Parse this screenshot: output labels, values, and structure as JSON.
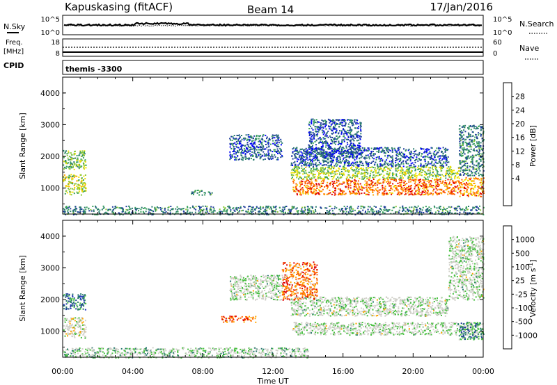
{
  "header": {
    "station": "Kapuskasing (fitACF)",
    "beam": "Beam 14",
    "date": "17/Jan/2016"
  },
  "noise_panel": {
    "left_label": "N.Sky",
    "right_label": "N.Search",
    "left_ticks": [
      "10^5",
      "10^0"
    ],
    "right_ticks": [
      "10^5",
      "10^0"
    ]
  },
  "freq_panel": {
    "left_label_1": "Freq.",
    "left_label_2": "[MHz]",
    "right_label": "Nave",
    "left_ticks": [
      "18",
      "8"
    ],
    "right_ticks": [
      "60",
      "0"
    ]
  },
  "cpid": {
    "label": "CPID",
    "value": "themis -3300"
  },
  "chart_data": [
    {
      "type": "heatmap",
      "title": "",
      "xlabel": "",
      "ylabel": "Slant Range [km]",
      "xlim": [
        0,
        24
      ],
      "ylim": [
        180,
        4500
      ],
      "y_ticks": [
        "1000",
        "2000",
        "3000",
        "4000"
      ],
      "colorbar": {
        "label": "Power [dB]",
        "ticks": [
          "28",
          "24",
          "20",
          "16",
          "12",
          "8",
          "4"
        ],
        "colors": [
          "#0000ff",
          "#1e3c9c",
          "#2a7a6e",
          "#37a05a",
          "#8bc83a",
          "#f0e000",
          "#ffa500",
          "#ff6000",
          "#e00000"
        ]
      },
      "regions": [
        {
          "t0": 0.0,
          "t1": 1.3,
          "r0": 800,
          "r1": 1450,
          "level": 0.55
        },
        {
          "t0": 0.0,
          "t1": 1.3,
          "r0": 1600,
          "r1": 2200,
          "level": 0.45
        },
        {
          "t0": 13.1,
          "t1": 22.6,
          "r0": 800,
          "r1": 1300,
          "level": 0.82
        },
        {
          "t0": 13.0,
          "t1": 22.6,
          "r0": 1300,
          "r1": 1700,
          "level": 0.5
        },
        {
          "t0": 13.0,
          "t1": 22.0,
          "r0": 1700,
          "r1": 2300,
          "level": 0.2
        },
        {
          "t0": 22.6,
          "t1": 24.0,
          "r0": 750,
          "r1": 1350,
          "level": 0.75
        },
        {
          "t0": 22.6,
          "t1": 24.0,
          "r0": 1400,
          "r1": 3000,
          "level": 0.3
        },
        {
          "t0": 9.5,
          "t1": 12.5,
          "r0": 1900,
          "r1": 2700,
          "level": 0.2
        },
        {
          "t0": 7.3,
          "t1": 8.5,
          "r0": 800,
          "r1": 950,
          "level": 0.3
        },
        {
          "t0": 0.0,
          "t1": 24.0,
          "r0": 180,
          "r1": 450,
          "level": 0.3
        },
        {
          "t0": 14.0,
          "t1": 17.0,
          "r0": 2000,
          "r1": 3200,
          "level": 0.2
        }
      ]
    },
    {
      "type": "heatmap",
      "title": "",
      "xlabel": "Time UT",
      "ylabel": "Slant Range [km]",
      "xlim": [
        0,
        24
      ],
      "ylim": [
        180,
        4500
      ],
      "x_ticks": [
        "00:00",
        "04:00",
        "08:00",
        "12:00",
        "16:00",
        "20:00",
        "00:00"
      ],
      "y_ticks": [
        "1000",
        "2000",
        "3000",
        "4000"
      ],
      "colorbar": {
        "label_main": "Velocity [m s",
        "label_sup": "-1",
        "label_end": "]",
        "ticks": [
          "1000",
          "500",
          "100",
          "25",
          "-25",
          "-100",
          "-500",
          "-1000"
        ],
        "colors": [
          "#e00000",
          "#ff6000",
          "#ffa500",
          "#cfcfc8",
          "#cfcfc8",
          "#48c040",
          "#2a7a6e",
          "#1e3c9c",
          "#2030c0"
        ]
      },
      "regions": [
        {
          "t0": 0.0,
          "t1": 1.3,
          "r0": 800,
          "r1": 1450,
          "level": 0.45
        },
        {
          "t0": 0.0,
          "t1": 1.3,
          "r0": 1700,
          "r1": 2200,
          "level": 0.75
        },
        {
          "t0": 13.1,
          "t1": 24.0,
          "r0": 900,
          "r1": 1300,
          "level": 0.5
        },
        {
          "t0": 13.0,
          "t1": 22.0,
          "r0": 1500,
          "r1": 2100,
          "level": 0.5
        },
        {
          "t0": 22.6,
          "t1": 24.0,
          "r0": 750,
          "r1": 1300,
          "level": 0.7
        },
        {
          "t0": 22.0,
          "t1": 24.0,
          "r0": 2000,
          "r1": 4000,
          "level": 0.5
        },
        {
          "t0": 12.5,
          "t1": 14.5,
          "r0": 2000,
          "r1": 3200,
          "level": 0.2
        },
        {
          "t0": 9.5,
          "t1": 12.5,
          "r0": 2000,
          "r1": 2800,
          "level": 0.5
        },
        {
          "t0": 0.0,
          "t1": 14.0,
          "r0": 180,
          "r1": 500,
          "level": 0.55
        },
        {
          "t0": 9.0,
          "t1": 11.0,
          "r0": 1300,
          "r1": 1500,
          "level": 0.2
        }
      ]
    }
  ]
}
